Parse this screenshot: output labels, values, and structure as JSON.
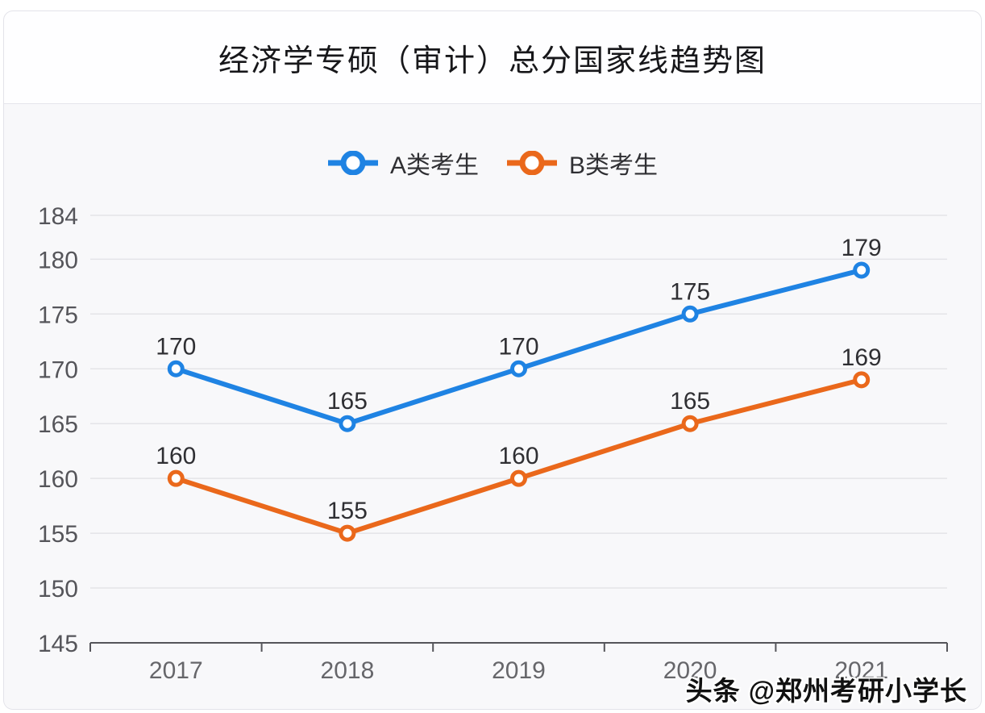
{
  "page": {
    "watermark": "头条 @郑州考研小学长"
  },
  "chart_data": {
    "type": "line",
    "title": "经济学专硕（审计）总分国家线趋势图",
    "categories": [
      "2017",
      "2018",
      "2019",
      "2020",
      "2021"
    ],
    "series": [
      {
        "name": "A类考生",
        "color": "#1f83e3",
        "values": [
          170,
          165,
          170,
          175,
          179
        ]
      },
      {
        "name": "B类考生",
        "color": "#ea681b",
        "values": [
          160,
          155,
          160,
          165,
          169
        ]
      }
    ],
    "xlabel": "",
    "ylabel": "",
    "ylim": [
      145,
      184
    ],
    "yticks": [
      145,
      150,
      155,
      160,
      165,
      170,
      175,
      180,
      184
    ],
    "grid": true,
    "legend_position": "top",
    "data_labels": true
  },
  "colors": {
    "series_a": "#1f83e3",
    "series_b": "#ea681b",
    "gridline": "#e4e4e8",
    "axis": "#55555a",
    "tick_label": "#55555a",
    "xtick_label": "#66666a",
    "data_label": "#2f2f33",
    "title_text": "#17171a",
    "chart_background": "#f8f8fa",
    "watermark_text": "#111111"
  }
}
